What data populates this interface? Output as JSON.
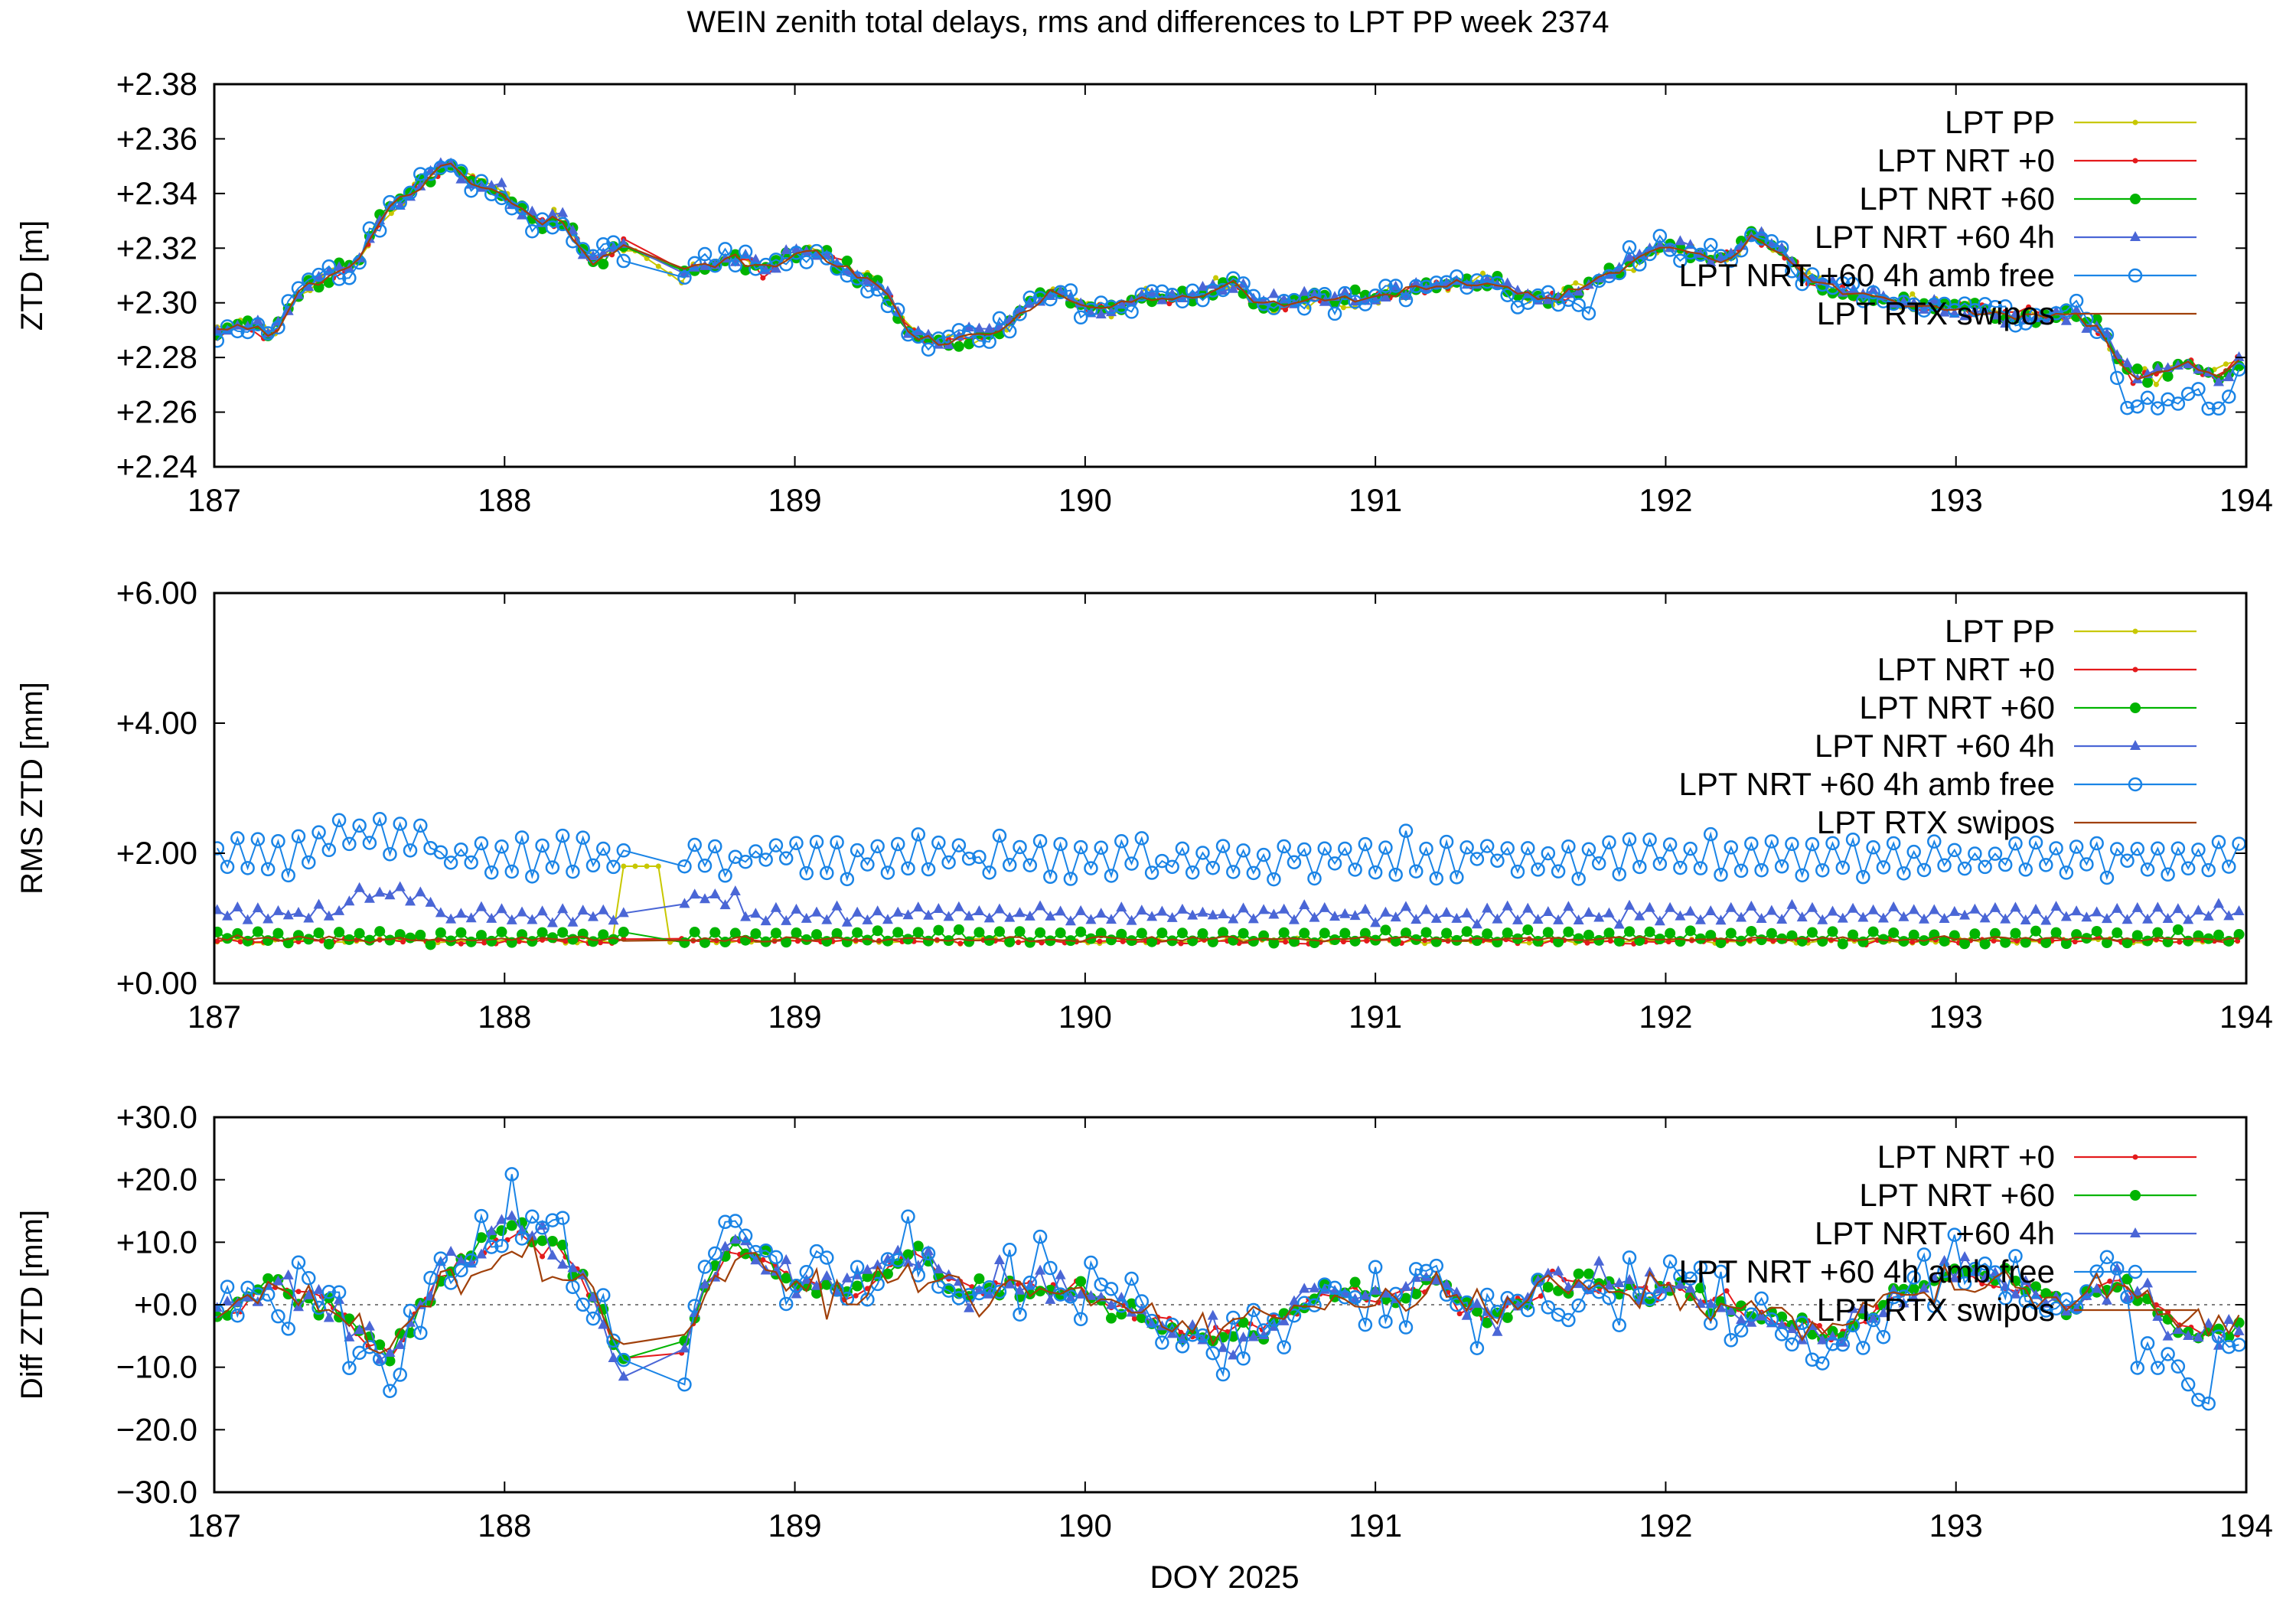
{
  "figure": {
    "title": "WEIN zenith total delays, rms and differences to LPT PP week 2374",
    "xlabel": "DOY 2025"
  },
  "colors": {
    "pp": "#c8c800",
    "nrt0": "#e41a1c",
    "nrt60": "#00b400",
    "nrt60_4h": "#4a66d6",
    "nrt60_4h_amb": "#1a84e6",
    "rtx": "#a0400a"
  },
  "chart_data": [
    {
      "type": "line",
      "ylabel": "ZTD [m]",
      "xlim": [
        187,
        194
      ],
      "ylim": [
        2.24,
        2.38
      ],
      "x_ticks": [
        "187",
        "188",
        "189",
        "190",
        "191",
        "192",
        "193",
        "194"
      ],
      "y_ticks": [
        "+2.24",
        "+2.26",
        "+2.28",
        "+2.30",
        "+2.32",
        "+2.34",
        "+2.36",
        "+2.38"
      ],
      "grid": false,
      "legend": "top-right",
      "series": [
        {
          "name": "LPT PP",
          "color_key": "pp",
          "marker": "dot"
        },
        {
          "name": "LPT NRT +0",
          "color_key": "nrt0",
          "marker": "dot"
        },
        {
          "name": "LPT NRT +60",
          "color_key": "nrt60",
          "marker": "filled-circle"
        },
        {
          "name": "LPT NRT +60 4h",
          "color_key": "nrt60_4h",
          "marker": "triangle"
        },
        {
          "name": "LPT NRT +60 4h amb free",
          "color_key": "nrt60_4h_amb",
          "marker": "open-circle"
        },
        {
          "name": "LPT RTX swipos",
          "color_key": "rtx",
          "marker": "none"
        }
      ],
      "base_profile": {
        "x": [
          187.0,
          187.1,
          187.2,
          187.3,
          187.4,
          187.5,
          187.6,
          187.7,
          187.8,
          187.9,
          188.0,
          188.1,
          188.2,
          188.3,
          188.4,
          188.5,
          188.6,
          188.7,
          188.8,
          188.9,
          189.0,
          189.1,
          189.2,
          189.3,
          189.4,
          189.5,
          189.6,
          189.7,
          189.8,
          189.9,
          190.0,
          190.2,
          190.4,
          190.5,
          190.6,
          190.8,
          191.0,
          191.2,
          191.4,
          191.6,
          191.8,
          192.0,
          192.1,
          192.2,
          192.3,
          192.4,
          192.5,
          192.6,
          192.8,
          193.0,
          193.2,
          193.4,
          193.5,
          193.6,
          193.7,
          193.8,
          193.9,
          194.0
        ],
        "y": [
          2.289,
          2.292,
          2.288,
          2.305,
          2.31,
          2.316,
          2.335,
          2.342,
          2.352,
          2.344,
          2.34,
          2.33,
          2.33,
          2.315,
          2.322,
          2.314,
          2.312,
          2.313,
          2.317,
          2.312,
          2.318,
          2.318,
          2.31,
          2.306,
          2.288,
          2.285,
          2.287,
          2.29,
          2.298,
          2.305,
          2.297,
          2.301,
          2.303,
          2.308,
          2.3,
          2.301,
          2.302,
          2.306,
          2.307,
          2.301,
          2.31,
          2.322,
          2.318,
          2.315,
          2.325,
          2.318,
          2.308,
          2.305,
          2.3,
          2.298,
          2.295,
          2.296,
          2.29,
          2.272,
          2.275,
          2.278,
          2.272,
          2.28
        ]
      }
    },
    {
      "type": "line",
      "ylabel": "RMS ZTD [mm]",
      "xlim": [
        187,
        194
      ],
      "ylim": [
        0,
        6
      ],
      "x_ticks": [
        "187",
        "188",
        "189",
        "190",
        "191",
        "192",
        "193",
        "194"
      ],
      "y_ticks": [
        "+0.00",
        "+2.00",
        "+4.00",
        "+6.00"
      ],
      "grid": false,
      "legend": "top-right",
      "series": [
        {
          "name": "LPT PP",
          "color_key": "pp",
          "marker": "dot"
        },
        {
          "name": "LPT NRT +0",
          "color_key": "nrt0",
          "marker": "dot"
        },
        {
          "name": "LPT NRT +60",
          "color_key": "nrt60",
          "marker": "filled-circle"
        },
        {
          "name": "LPT NRT +60 4h",
          "color_key": "nrt60_4h",
          "marker": "triangle"
        },
        {
          "name": "LPT NRT +60 4h amb free",
          "color_key": "nrt60_4h_amb",
          "marker": "open-circle"
        },
        {
          "name": "LPT RTX swipos",
          "color_key": "rtx",
          "marker": "none"
        }
      ],
      "typical_levels": {
        "LPT NRT +60": 0.7,
        "LPT NRT +60 4h": 1.05,
        "LPT NRT +60 4h amb free": 1.9
      }
    },
    {
      "type": "line",
      "ylabel": "Diff ZTD [mm]",
      "xlim": [
        187,
        194
      ],
      "ylim": [
        -30,
        30
      ],
      "x_ticks": [
        "187",
        "188",
        "189",
        "190",
        "191",
        "192",
        "193",
        "194"
      ],
      "y_ticks": [
        "−30.0",
        "−20.0",
        "−10.0",
        "+0.0",
        "+10.0",
        "+20.0",
        "+30.0"
      ],
      "zero_line": true,
      "grid": false,
      "legend": "top-right",
      "series": [
        {
          "name": "LPT NRT +0",
          "color_key": "nrt0",
          "marker": "dot"
        },
        {
          "name": "LPT NRT +60",
          "color_key": "nrt60",
          "marker": "filled-circle"
        },
        {
          "name": "LPT NRT +60 4h",
          "color_key": "nrt60_4h",
          "marker": "triangle"
        },
        {
          "name": "LPT NRT +60 4h amb free",
          "color_key": "nrt60_4h_amb",
          "marker": "open-circle"
        },
        {
          "name": "LPT RTX swipos",
          "color_key": "rtx",
          "marker": "none"
        }
      ],
      "base_profile": {
        "x": [
          187.0,
          187.2,
          187.4,
          187.5,
          187.6,
          187.8,
          188.0,
          188.1,
          188.2,
          188.3,
          188.4,
          188.5,
          188.6,
          188.7,
          188.8,
          189.0,
          189.2,
          189.4,
          189.5,
          189.6,
          189.8,
          190.0,
          190.2,
          190.4,
          190.6,
          190.8,
          191.0,
          191.2,
          191.4,
          191.6,
          191.8,
          192.0,
          192.2,
          192.4,
          192.6,
          192.8,
          193.0,
          193.2,
          193.4,
          193.5,
          193.6,
          193.8,
          194.0
        ],
        "y": [
          -2,
          3,
          0,
          -5,
          -8,
          5,
          12,
          10,
          8,
          2,
          -8,
          -6,
          -10,
          4,
          10,
          4,
          2,
          8,
          5,
          2,
          3,
          2,
          -2,
          -5,
          -4,
          2,
          1,
          3,
          -2,
          4,
          3,
          2,
          0,
          -3,
          -5,
          2,
          5,
          3,
          0,
          4,
          2,
          -4,
          -5
        ]
      }
    }
  ]
}
